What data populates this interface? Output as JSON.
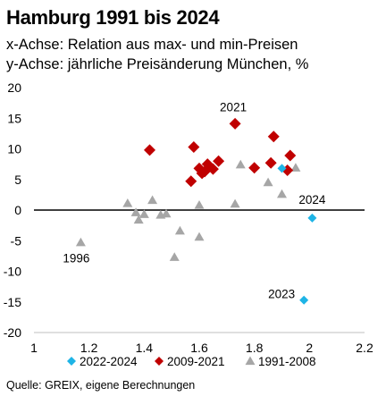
{
  "title": "Hamburg 1991 bis 2024",
  "subtitle1": "x-Achse: Relation aus max- und min-Preisen",
  "subtitle2": "y-Achse: jährliche Preisänderung München, %",
  "source": "Quelle: GREIX, eigene Berechnungen",
  "chart_data": {
    "type": "scatter",
    "xlim": [
      1,
      2.2
    ],
    "ylim": [
      -20,
      20
    ],
    "x_ticks": [
      1,
      1.2,
      1.4,
      1.6,
      1.8,
      2,
      2.2
    ],
    "x_tick_labels": [
      "1",
      "1.2",
      "1.4",
      "1.6",
      "1.8",
      "2",
      "2.2"
    ],
    "y_ticks": [
      -20,
      -15,
      -10,
      -5,
      0,
      5,
      10,
      15,
      20
    ],
    "y_tick_labels": [
      "-20",
      "-15",
      "-10",
      "-5",
      "0",
      "5",
      "10",
      "15",
      "20"
    ],
    "grid": false,
    "zero_line": true,
    "legend_position": "bottom",
    "series": [
      {
        "name": "2022-2024",
        "color": "#1eb4e6",
        "marker": "diamond",
        "points": [
          [
            1.9,
            6.8
          ],
          [
            2.01,
            -1.3
          ],
          [
            1.98,
            -14.7
          ]
        ]
      },
      {
        "name": "2009-2021",
        "color": "#c00000",
        "marker": "diamond",
        "points": [
          [
            1.42,
            9.8
          ],
          [
            1.57,
            4.7
          ],
          [
            1.58,
            10.3
          ],
          [
            1.6,
            6.8
          ],
          [
            1.61,
            6.0
          ],
          [
            1.62,
            6.3
          ],
          [
            1.63,
            7.5
          ],
          [
            1.65,
            6.7
          ],
          [
            1.67,
            8.0
          ],
          [
            1.73,
            14.1
          ],
          [
            1.8,
            6.9
          ],
          [
            1.86,
            7.7
          ],
          [
            1.87,
            12.0
          ],
          [
            1.92,
            6.5
          ],
          [
            1.93,
            8.9
          ]
        ]
      },
      {
        "name": "1991-2008",
        "color": "#a6a6a6",
        "marker": "triangle",
        "points": [
          [
            1.17,
            -5.3
          ],
          [
            1.34,
            1.1
          ],
          [
            1.37,
            -0.4
          ],
          [
            1.38,
            -1.6
          ],
          [
            1.4,
            -0.7
          ],
          [
            1.43,
            1.6
          ],
          [
            1.46,
            -0.8
          ],
          [
            1.48,
            -0.6
          ],
          [
            1.51,
            -7.7
          ],
          [
            1.53,
            -3.4
          ],
          [
            1.6,
            0.8
          ],
          [
            1.6,
            -4.4
          ],
          [
            1.73,
            1.0
          ],
          [
            1.75,
            7.4
          ],
          [
            1.85,
            4.5
          ],
          [
            1.9,
            2.6
          ],
          [
            1.95,
            6.9
          ]
        ]
      }
    ],
    "annotations": [
      {
        "text": "2021",
        "x": 1.73,
        "y": 14.1
      },
      {
        "text": "2024",
        "x": 2.01,
        "y": -1.3
      },
      {
        "text": "1996",
        "x": 1.17,
        "y": -5.3
      },
      {
        "text": "2023",
        "x": 1.98,
        "y": -14.7
      }
    ]
  }
}
